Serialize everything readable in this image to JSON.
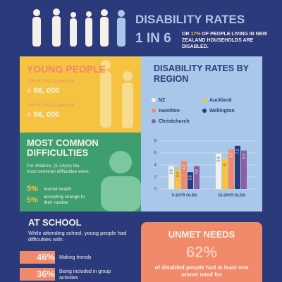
{
  "header": {
    "title": "DISABILITY RATES",
    "ratio": "1 IN 6",
    "text_pre": "OR",
    "text_highlight": "17%",
    "text_post": "OF PEOPLE LIVING IN NEW ZEALAND HOUSEHOLDS ARE DISABLED."
  },
  "young_people": {
    "title": "YOUNG PEOPLE",
    "line1": "13% of 10 to 19 year olds",
    "value1": "= 86, 000",
    "line2": "14% of 20 to 29 year olds",
    "value2": "= 96, 000"
  },
  "difficulties": {
    "title": "MOST COMMON DIFFICULTIES",
    "intro": "For children, (5-14yrs) the most common difficulties were:",
    "items": [
      {
        "pct": "5%",
        "label": "mental health"
      },
      {
        "pct": "5%",
        "label": "accepting change to their routine"
      }
    ]
  },
  "school": {
    "title": "AT SCHOOL",
    "intro": "While attending school, young people had difficulties with:",
    "items": [
      {
        "pct": "46%",
        "label": "Making friends"
      },
      {
        "pct": "36%",
        "label": "Being included in group activities"
      }
    ]
  },
  "unmet": {
    "title": "UNMET NEEDS",
    "pct": "62%",
    "text": "of disabled people had at least one unmet need for"
  },
  "chart_data": {
    "type": "bar",
    "title": "DISABILITY RATES BY REGION",
    "categories": [
      "5-15YR OLDS",
      "15-29YR OLDS"
    ],
    "series": [
      {
        "name": "NZ",
        "color": "#f4f1ea",
        "values": [
          3.8,
          5.9
        ]
      },
      {
        "name": "Auckland",
        "color": "#f5c242",
        "values": [
          3.3,
          5
        ]
      },
      {
        "name": "Hamilton",
        "color": "#f08a6a",
        "values": [
          4.6,
          6.6
        ]
      },
      {
        "name": "Wellington",
        "color": "#2b3a7a",
        "values": [
          2.8,
          7.2
        ]
      },
      {
        "name": "Christchurch",
        "color": "#8a5fa8",
        "values": [
          3.8,
          6.4
        ]
      }
    ],
    "ylim": [
      0,
      8
    ],
    "yticks": [
      0,
      2,
      4,
      6,
      8
    ],
    "grid": true
  }
}
